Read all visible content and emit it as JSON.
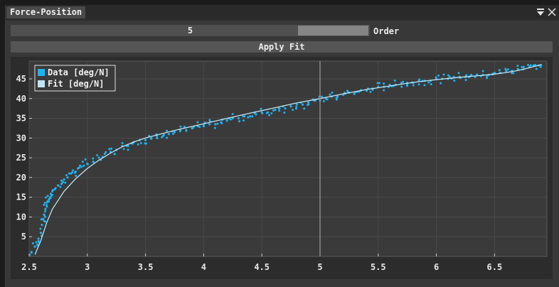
{
  "window": {
    "tab_title": "Force-Position",
    "menu_icon": "collapse-triangle-menu-icon",
    "close_icon": "close-x-icon"
  },
  "controls": {
    "order_value": "5",
    "order_label": "Order",
    "order_slider_level": 0.8,
    "apply_label": "Apply Fit"
  },
  "colors": {
    "data": "#1fb2f0",
    "fit": "#bfe4f3",
    "plot_bg": "#3a3a3a",
    "cursor_line": "#8a8a8a"
  },
  "chart_data": {
    "type": "scatter",
    "title": "",
    "xlabel": "",
    "ylabel": "",
    "xlim": [
      2.5,
      6.95
    ],
    "ylim": [
      0,
      49.5
    ],
    "grid": true,
    "legend_placement": "top-left",
    "x_ticks": [
      2.5,
      3,
      3.5,
      4,
      4.5,
      5,
      5.5,
      6,
      6.5
    ],
    "x_tick_labels": [
      "2.5",
      "3",
      "3.5",
      "4",
      "4.5",
      "5",
      "5.5",
      "6",
      "6.5"
    ],
    "y_ticks": [
      5,
      10,
      15,
      20,
      25,
      30,
      35,
      40,
      45
    ],
    "y_tick_labels": [
      "5",
      "10",
      "15",
      "20",
      "25",
      "30",
      "35",
      "40",
      "45"
    ],
    "cursor_x": 5.0,
    "series": [
      {
        "name": "Data [deg/N]",
        "kind": "scatter",
        "x": [
          2.52,
          2.55,
          2.57,
          2.58,
          2.6,
          2.61,
          2.62,
          2.63,
          2.64,
          2.65,
          2.66,
          2.67,
          2.68,
          2.7,
          2.72,
          2.75,
          2.78,
          2.8,
          2.83,
          2.86,
          2.9,
          2.93,
          2.97,
          3.0,
          3.05,
          3.1,
          3.15,
          3.2,
          3.25,
          3.3,
          3.35,
          3.4,
          3.45,
          3.5,
          3.55,
          3.6,
          3.65,
          3.7,
          3.75,
          3.8,
          3.85,
          3.9,
          3.95,
          4.0,
          4.05,
          4.1,
          4.15,
          4.2,
          4.25,
          4.3,
          4.35,
          4.4,
          4.45,
          4.5,
          4.55,
          4.6,
          4.65,
          4.7,
          4.75,
          4.8,
          4.85,
          4.9,
          4.95,
          5.0,
          5.05,
          5.1,
          5.15,
          5.2,
          5.25,
          5.3,
          5.35,
          5.4,
          5.45,
          5.5,
          5.55,
          5.6,
          5.65,
          5.7,
          5.75,
          5.8,
          5.85,
          5.9,
          5.95,
          6.0,
          6.05,
          6.1,
          6.15,
          6.2,
          6.25,
          6.3,
          6.35,
          6.4,
          6.45,
          6.5,
          6.55,
          6.6,
          6.65,
          6.7,
          6.75,
          6.8,
          6.85,
          6.9
        ],
        "y": [
          1.0,
          2.5,
          3.0,
          4.5,
          6.0,
          8.0,
          9.5,
          10.5,
          12.0,
          13.0,
          14.0,
          14.5,
          15.0,
          16.5,
          17.0,
          18.0,
          18.5,
          19.5,
          20.0,
          21.0,
          21.5,
          22.5,
          23.0,
          23.5,
          24.0,
          25.0,
          26.0,
          26.5,
          27.0,
          28.0,
          28.0,
          29.0,
          29.5,
          29.5,
          30.0,
          30.0,
          30.5,
          31.0,
          31.5,
          32.0,
          32.0,
          32.5,
          33.0,
          33.0,
          33.5,
          33.5,
          34.0,
          34.5,
          35.0,
          35.0,
          35.5,
          35.5,
          36.0,
          36.5,
          36.5,
          37.0,
          37.5,
          37.5,
          38.0,
          38.5,
          38.5,
          39.0,
          39.5,
          39.5,
          40.0,
          40.5,
          40.5,
          41.0,
          41.5,
          41.5,
          42.0,
          42.0,
          42.5,
          43.0,
          43.0,
          43.5,
          43.5,
          44.0,
          44.0,
          44.0,
          44.5,
          44.5,
          44.5,
          45.0,
          45.0,
          45.0,
          45.5,
          45.5,
          45.5,
          46.0,
          46.0,
          46.0,
          46.0,
          46.5,
          46.5,
          47.0,
          47.0,
          47.5,
          48.0,
          48.0,
          48.5,
          48.5
        ]
      },
      {
        "name": "Fit [deg/N]",
        "kind": "line",
        "x": [
          2.55,
          2.6,
          2.65,
          2.7,
          2.8,
          2.9,
          3.0,
          3.1,
          3.2,
          3.3,
          3.4,
          3.5,
          3.6,
          3.8,
          4.0,
          4.2,
          4.4,
          4.6,
          4.8,
          5.0,
          5.2,
          5.4,
          5.6,
          5.8,
          6.0,
          6.2,
          6.4,
          6.5,
          6.6,
          6.7,
          6.8,
          6.9
        ],
        "y": [
          0.5,
          4.0,
          8.5,
          12.0,
          16.5,
          19.7,
          22.3,
          24.4,
          26.2,
          27.8,
          29.0,
          30.0,
          30.8,
          32.3,
          33.6,
          35.0,
          36.3,
          37.6,
          38.9,
          40.0,
          41.2,
          42.3,
          43.2,
          44.1,
          44.8,
          45.4,
          45.9,
          46.2,
          46.6,
          47.1,
          47.8,
          48.6
        ]
      }
    ]
  }
}
